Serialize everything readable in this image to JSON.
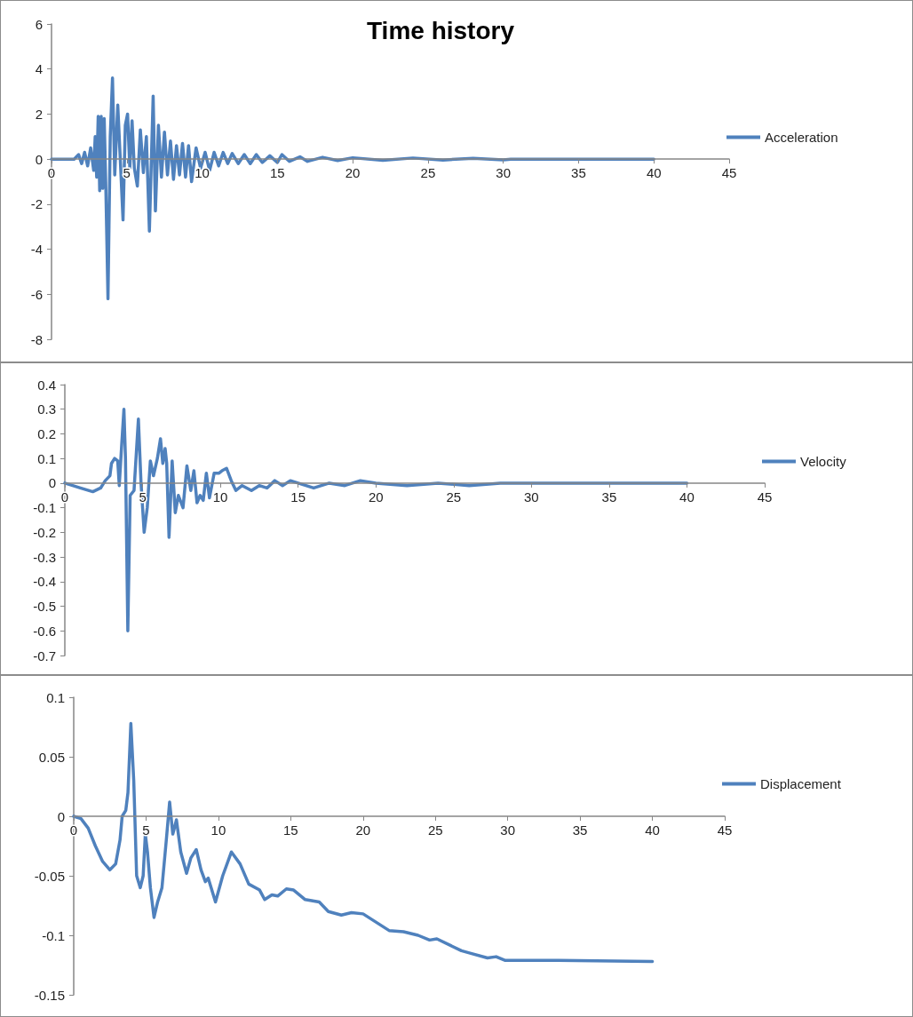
{
  "chart_data": [
    {
      "type": "line",
      "title": "Time history",
      "legend": "right",
      "marker": "none",
      "xlim": [
        0,
        45
      ],
      "xticks": [
        0,
        5,
        10,
        15,
        20,
        25,
        30,
        35,
        40,
        45
      ],
      "ylim": [
        -8,
        6
      ],
      "yticks": [
        -8,
        -6,
        -4,
        -2,
        0,
        2,
        4,
        6
      ],
      "x": [
        0,
        1.5,
        1.8,
        2.0,
        2.2,
        2.4,
        2.6,
        2.8,
        2.9,
        3.0,
        3.1,
        3.2,
        3.3,
        3.4,
        3.5,
        3.6,
        3.75,
        3.9,
        4.05,
        4.2,
        4.4,
        4.6,
        4.75,
        4.9,
        5.05,
        5.2,
        5.35,
        5.5,
        5.7,
        5.9,
        6.1,
        6.3,
        6.5,
        6.75,
        6.9,
        7.1,
        7.3,
        7.5,
        7.7,
        7.9,
        8.1,
        8.3,
        8.5,
        8.7,
        8.9,
        9.1,
        9.3,
        9.6,
        9.9,
        10.2,
        10.5,
        10.8,
        11.1,
        11.4,
        11.7,
        12,
        12.4,
        12.8,
        13.2,
        13.6,
        14,
        14.5,
        15,
        15.3,
        15.8,
        16.5,
        17,
        18,
        19,
        20,
        22,
        24,
        26,
        28,
        30,
        30.5,
        40
      ],
      "series": [
        {
          "name": "Acceleration",
          "color": "#4f81bd",
          "values": [
            0,
            0,
            0.2,
            -0.2,
            0.3,
            -0.3,
            0.5,
            -0.5,
            1.0,
            -0.8,
            1.9,
            -1.4,
            1.9,
            -1.3,
            1.8,
            -1.0,
            -6.2,
            1.0,
            3.6,
            -0.7,
            2.4,
            -0.5,
            -2.7,
            1.5,
            2.0,
            -0.4,
            1.7,
            -0.4,
            -1.2,
            1.3,
            -0.6,
            1.0,
            -3.2,
            2.8,
            -2.3,
            1.5,
            -0.8,
            1.2,
            -0.7,
            0.8,
            -0.9,
            0.6,
            -0.7,
            0.7,
            -0.8,
            0.6,
            -1.0,
            0.5,
            -0.4,
            0.3,
            -0.5,
            0.3,
            -0.3,
            0.3,
            -0.2,
            0.25,
            -0.2,
            0.2,
            -0.2,
            0.2,
            -0.15,
            0.15,
            -0.15,
            0.2,
            -0.1,
            0.1,
            -0.1,
            0.08,
            -0.06,
            0.06,
            -0.05,
            0.05,
            -0.04,
            0.04,
            -0.03,
            0,
            0
          ]
        }
      ]
    },
    {
      "type": "line",
      "legend": "right",
      "marker": "none",
      "xlim": [
        0,
        45
      ],
      "xticks": [
        0,
        5,
        10,
        15,
        20,
        25,
        30,
        35,
        40,
        45
      ],
      "ylim": [
        -0.7,
        0.4
      ],
      "yticks": [
        -0.7,
        -0.6,
        -0.5,
        -0.4,
        -0.3,
        -0.2,
        -0.1,
        0,
        0.1,
        0.2,
        0.3,
        0.4
      ],
      "x": [
        0,
        1,
        1.8,
        2.3,
        2.6,
        2.9,
        3.0,
        3.2,
        3.4,
        3.5,
        3.65,
        3.8,
        3.9,
        4.05,
        4.2,
        4.45,
        4.73,
        4.9,
        5.1,
        5.3,
        5.5,
        5.7,
        5.95,
        6.15,
        6.3,
        6.45,
        6.55,
        6.7,
        6.9,
        7.1,
        7.3,
        7.6,
        7.85,
        8.1,
        8.3,
        8.5,
        8.7,
        8.9,
        9.1,
        9.3,
        9.6,
        9.9,
        10.1,
        10.4,
        10.7,
        11.0,
        11.4,
        12,
        12.5,
        13,
        13.5,
        14,
        14.5,
        15,
        15.5,
        16,
        17,
        18,
        19,
        20,
        22,
        24,
        26,
        28,
        30,
        40
      ],
      "series": [
        {
          "name": "Velocity",
          "color": "#4f81bd",
          "values": [
            0,
            -0.02,
            -0.035,
            -0.02,
            0.01,
            0.03,
            0.08,
            0.1,
            0.09,
            -0.01,
            0.15,
            0.3,
            0.1,
            -0.6,
            -0.05,
            -0.03,
            0.26,
            0.0,
            -0.2,
            -0.1,
            0.09,
            0.03,
            0.1,
            0.18,
            0.08,
            0.14,
            0.08,
            -0.22,
            0.09,
            -0.12,
            -0.05,
            -0.1,
            0.07,
            -0.03,
            0.05,
            -0.08,
            -0.05,
            -0.07,
            0.04,
            -0.06,
            0.04,
            0.04,
            0.05,
            0.06,
            0.01,
            -0.03,
            -0.01,
            -0.03,
            -0.01,
            -0.02,
            0.01,
            -0.01,
            0.01,
            0.0,
            -0.01,
            -0.02,
            0.0,
            -0.01,
            0.01,
            0.0,
            -0.01,
            0.0,
            -0.01,
            0.0,
            0.0,
            0.0
          ]
        }
      ]
    },
    {
      "type": "line",
      "legend": "right",
      "marker": "none",
      "xlim": [
        0,
        45
      ],
      "xticks": [
        0,
        5,
        10,
        15,
        20,
        25,
        30,
        35,
        40,
        45
      ],
      "ylim": [
        -0.15,
        0.1
      ],
      "yticks": [
        -0.15,
        -0.1,
        -0.05,
        0,
        0.05,
        0.1
      ],
      "x": [
        0,
        0.5,
        1.0,
        1.5,
        2.0,
        2.5,
        2.9,
        3.2,
        3.35,
        3.6,
        3.75,
        3.95,
        4.15,
        4.35,
        4.6,
        4.8,
        4.95,
        5.1,
        5.3,
        5.55,
        5.8,
        6.1,
        6.4,
        6.63,
        6.85,
        7.0,
        7.1,
        7.4,
        7.8,
        8.1,
        8.47,
        8.8,
        9.1,
        9.3,
        9.8,
        10.3,
        10.9,
        11.5,
        12.1,
        12.85,
        13.2,
        13.7,
        14.1,
        14.7,
        15.2,
        16.0,
        16.97,
        17.6,
        18.5,
        19.2,
        20,
        21.8,
        22.8,
        23.8,
        24.6,
        25.1,
        26.8,
        27.4,
        28.6,
        29.2,
        29.8,
        33.5,
        40
      ],
      "series": [
        {
          "name": "Displacement",
          "color": "#4f81bd",
          "values": [
            0,
            -0.002,
            -0.01,
            -0.025,
            -0.038,
            -0.045,
            -0.04,
            -0.02,
            0.0,
            0.005,
            0.02,
            0.078,
            0.03,
            -0.05,
            -0.06,
            -0.05,
            -0.015,
            -0.03,
            -0.06,
            -0.085,
            -0.072,
            -0.06,
            -0.02,
            0.012,
            -0.015,
            -0.008,
            -0.003,
            -0.03,
            -0.048,
            -0.035,
            -0.028,
            -0.045,
            -0.055,
            -0.052,
            -0.072,
            -0.05,
            -0.03,
            -0.04,
            -0.057,
            -0.062,
            -0.07,
            -0.066,
            -0.067,
            -0.061,
            -0.062,
            -0.07,
            -0.072,
            -0.08,
            -0.083,
            -0.081,
            -0.082,
            -0.096,
            -0.097,
            -0.1,
            -0.104,
            -0.103,
            -0.113,
            -0.115,
            -0.119,
            -0.118,
            -0.121,
            -0.121,
            -0.122
          ]
        }
      ]
    }
  ]
}
